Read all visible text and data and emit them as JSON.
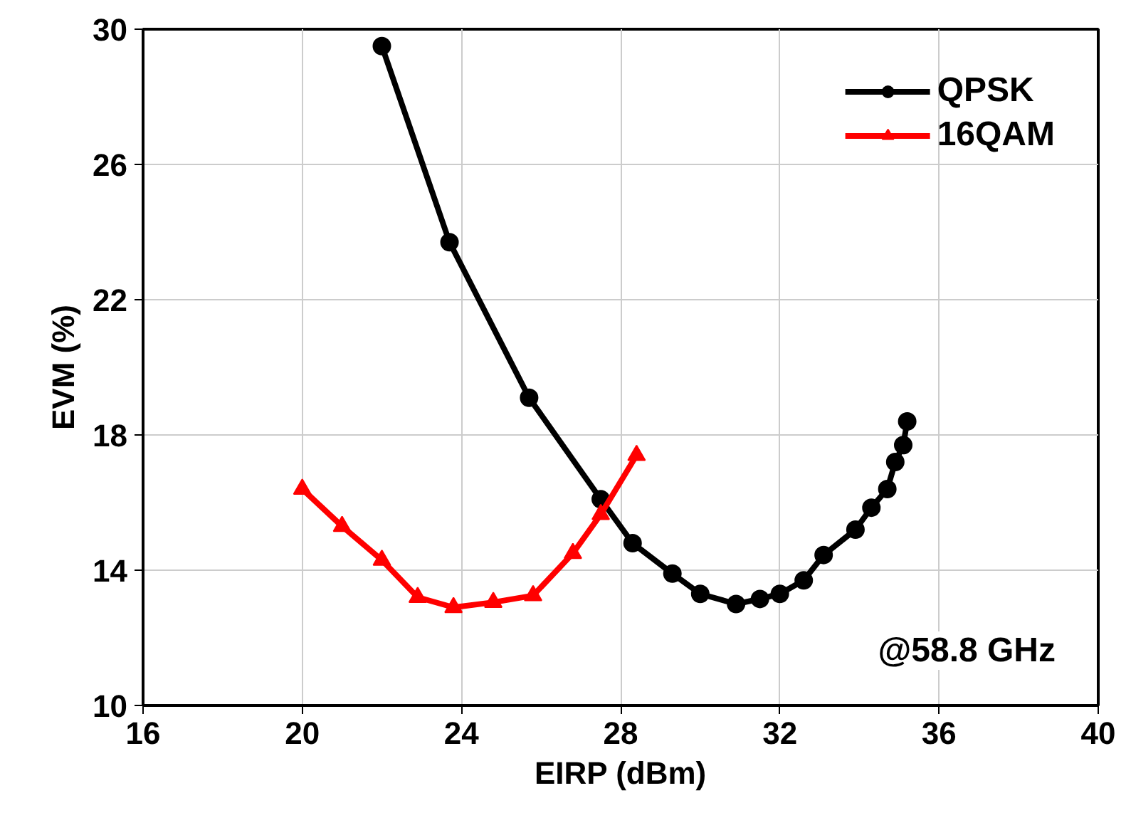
{
  "chart_data": {
    "type": "line",
    "xlabel": "EIRP (dBm)",
    "ylabel": "EVM (%)",
    "xlim": [
      16,
      40
    ],
    "ylim": [
      10,
      30
    ],
    "xticks": [
      16,
      20,
      24,
      28,
      32,
      36,
      40
    ],
    "yticks": [
      10,
      14,
      18,
      22,
      26,
      30
    ],
    "grid": true,
    "legend": "top right",
    "line_style": "solid",
    "annotations": [
      "@58.8 GHz"
    ],
    "series": [
      {
        "name": "QPSK",
        "color": "#000000",
        "marker": "circle",
        "x": [
          22.0,
          23.7,
          25.7,
          27.5,
          28.3,
          29.3,
          30.0,
          30.9,
          31.5,
          32.0,
          32.6,
          33.1,
          33.9,
          34.3,
          34.7,
          34.9,
          35.1,
          35.2
        ],
        "values": [
          29.5,
          23.7,
          19.1,
          16.1,
          14.8,
          13.9,
          13.3,
          13.0,
          13.15,
          13.3,
          13.7,
          14.45,
          15.2,
          15.85,
          16.4,
          17.2,
          17.7,
          18.4
        ]
      },
      {
        "name": "16QAM",
        "color": "#ff0000",
        "marker": "triangle",
        "x": [
          20.0,
          21.0,
          22.0,
          22.9,
          23.8,
          24.8,
          25.8,
          26.8,
          27.5,
          28.4
        ],
        "values": [
          16.4,
          15.3,
          14.3,
          13.2,
          12.9,
          13.05,
          13.25,
          14.5,
          15.65,
          17.4
        ]
      }
    ]
  }
}
